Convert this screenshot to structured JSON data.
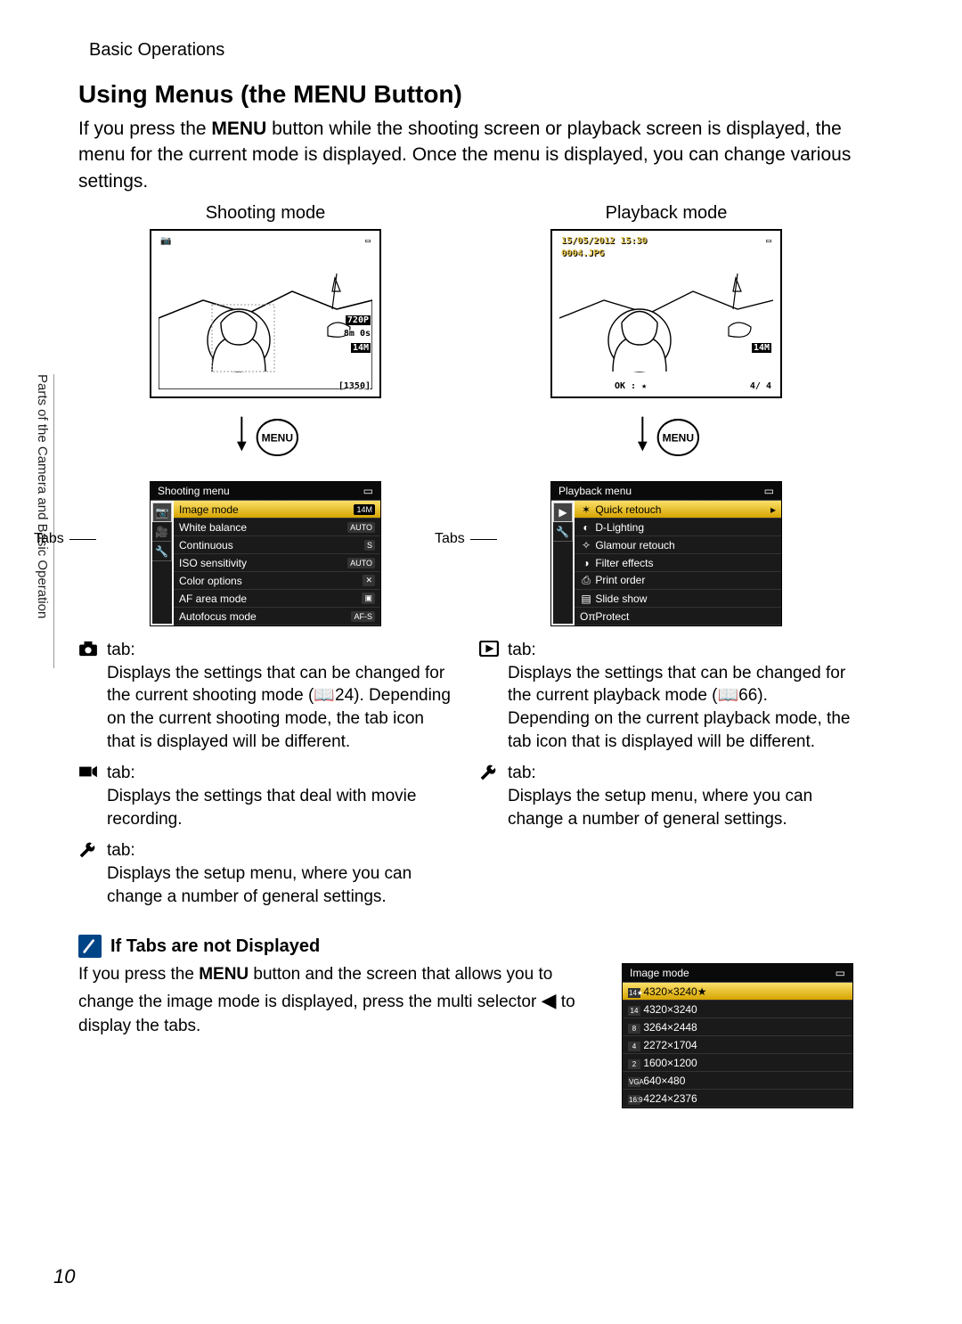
{
  "side_tab": "Parts of the Camera and Basic Operation",
  "breadcrumb": "Basic Operations",
  "title_pre": "Using Menus (the ",
  "title_glyph": "MENU",
  "title_post": " Button)",
  "intro_pre": "If you press the ",
  "intro_glyph": "MENU",
  "intro_post": " button while the shooting screen or playback screen is displayed, the menu for the current mode is displayed. Once the menu is displayed, you can change various settings.",
  "shooting": {
    "label": "Shooting mode",
    "lcd": {
      "video_mode": "720P",
      "rec_time": "8m 0s",
      "size_icon": "14M",
      "counter": "[1350]"
    },
    "menu": {
      "title": "Shooting menu",
      "items": [
        {
          "label": "Image mode",
          "value": "14M",
          "highlight": true
        },
        {
          "label": "White balance",
          "value": "AUTO"
        },
        {
          "label": "Continuous",
          "value": "S"
        },
        {
          "label": "ISO sensitivity",
          "value": "AUTO"
        },
        {
          "label": "Color options",
          "value": "✕"
        },
        {
          "label": "AF area mode",
          "value": "▣"
        },
        {
          "label": "Autofocus mode",
          "value": "AF-S"
        }
      ]
    },
    "tabs_label": "Tabs",
    "descs": [
      {
        "icon": "camera",
        "label": "tab:",
        "text": "Displays the settings that can be changed for the current shooting mode (📖24). Depending on the current shooting mode, the tab icon that is displayed will be different."
      },
      {
        "icon": "movie",
        "label": "tab:",
        "text": "Displays the settings that deal with movie recording."
      },
      {
        "icon": "wrench",
        "label": "tab:",
        "text": "Displays the setup menu, where you can change a number of general settings."
      }
    ]
  },
  "playback": {
    "label": "Playback mode",
    "lcd": {
      "date": "15/05/2012 15:30",
      "file": "0004.JPG",
      "size_icon": "14M",
      "frame": "4/   4",
      "ok_glyph": "OK : ★"
    },
    "menu": {
      "title": "Playback menu",
      "items": [
        {
          "icon": "✶",
          "label": "Quick retouch",
          "highlight": true
        },
        {
          "icon": "◐",
          "label": "D-Lighting"
        },
        {
          "icon": "✧",
          "label": "Glamour retouch"
        },
        {
          "icon": "◑",
          "label": "Filter effects"
        },
        {
          "icon": "⎙",
          "label": "Print order"
        },
        {
          "icon": "▤",
          "label": "Slide show"
        },
        {
          "icon": "Oπ",
          "label": "Protect"
        }
      ]
    },
    "tabs_label": "Tabs",
    "descs": [
      {
        "icon": "play",
        "label": "tab:",
        "text": "Displays the settings that can be changed for the current playback mode (📖66). Depending on the current playback mode, the tab icon that is displayed will be different."
      },
      {
        "icon": "wrench",
        "label": "tab:",
        "text": "Displays the setup menu, where you can change a number of general settings."
      }
    ]
  },
  "note": {
    "heading": "If Tabs are not Displayed",
    "text_pre": "If you press the ",
    "text_glyph": "MENU",
    "text_mid": " button and the screen that allows you to change the image mode is displayed, press the multi selector ",
    "text_arrow": "◀",
    "text_post": " to display the tabs.",
    "menu": {
      "title": "Image mode",
      "items": [
        {
          "icon": "14★",
          "label": "4320×3240★",
          "highlight": true
        },
        {
          "icon": "14",
          "label": "4320×3240"
        },
        {
          "icon": "8",
          "label": "3264×2448"
        },
        {
          "icon": "4",
          "label": "2272×1704"
        },
        {
          "icon": "2",
          "label": "1600×1200"
        },
        {
          "icon": "VGA",
          "label": "640×480"
        },
        {
          "icon": "16:9",
          "label": "4224×2376"
        }
      ]
    }
  },
  "page": "10",
  "styling": {
    "highlight_bg": "#d6a400",
    "menu_bg": "#1a1a1a",
    "text_color": "#000000",
    "note_icon_bg": "#004488"
  }
}
